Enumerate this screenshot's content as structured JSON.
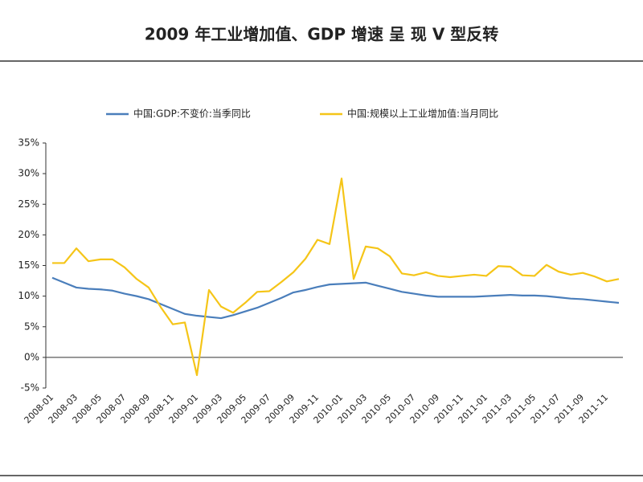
{
  "chart_data": {
    "type": "line",
    "title": "2009 年工业增加值、GDP 增速 呈 现 V 型反转",
    "categories": [
      "2008-01",
      null,
      "2008-03",
      null,
      "2008-05",
      null,
      "2008-07",
      null,
      "2008-09",
      null,
      "2008-11",
      null,
      "2009-01",
      null,
      "2009-03",
      null,
      "2009-05",
      null,
      "2009-07",
      null,
      "2009-09",
      null,
      "2009-11",
      null,
      "2010-01",
      null,
      "2010-03",
      null,
      "2010-05",
      null,
      "2010-07",
      null,
      "2010-09",
      null,
      "2010-11",
      null,
      "2011-01",
      null,
      "2011-03",
      null,
      "2011-05",
      null,
      "2011-07",
      null,
      "2011-09",
      null,
      "2011-11",
      null
    ],
    "series": [
      {
        "name": "中国:GDP:不变价:当季同比",
        "color": "#4a7ebb",
        "values": [
          13.0,
          12.2,
          11.4,
          11.2,
          11.1,
          10.9,
          10.4,
          10.0,
          9.5,
          8.7,
          7.9,
          7.1,
          6.8,
          6.6,
          6.4,
          6.9,
          7.5,
          8.1,
          8.9,
          9.7,
          10.6,
          11.0,
          11.5,
          11.9,
          12.0,
          12.1,
          12.2,
          11.7,
          11.2,
          10.7,
          10.4,
          10.1,
          9.9,
          9.9,
          9.9,
          9.9,
          10.0,
          10.1,
          10.2,
          10.1,
          10.1,
          10.0,
          9.8,
          9.6,
          9.5,
          9.3,
          9.1,
          8.9
        ]
      },
      {
        "name": "中国:规模以上工业增加值:当月同比",
        "color": "#f5c518",
        "values": [
          15.4,
          15.4,
          17.8,
          15.7,
          16.0,
          16.0,
          14.7,
          12.8,
          11.4,
          8.2,
          5.4,
          5.7,
          -2.9,
          11.0,
          8.3,
          7.3,
          8.9,
          10.7,
          10.8,
          12.3,
          13.9,
          16.1,
          19.2,
          18.5,
          29.2,
          12.8,
          18.1,
          17.8,
          16.5,
          13.7,
          13.4,
          13.9,
          13.3,
          13.1,
          13.3,
          13.5,
          13.3,
          14.9,
          14.8,
          13.4,
          13.3,
          15.1,
          14.0,
          13.5,
          13.8,
          13.2,
          12.4,
          12.8
        ]
      }
    ],
    "ylim": [
      -5,
      35
    ],
    "yticks": [
      {
        "value": -5,
        "label": "-5%"
      },
      {
        "value": 0,
        "label": "0%"
      },
      {
        "value": 5,
        "label": "5%"
      },
      {
        "value": 10,
        "label": "10%"
      },
      {
        "value": 15,
        "label": "15%"
      },
      {
        "value": 20,
        "label": "20%"
      },
      {
        "value": 25,
        "label": "25%"
      },
      {
        "value": 30,
        "label": "30%"
      },
      {
        "value": 35,
        "label": "35%"
      }
    ],
    "legend": "top"
  }
}
